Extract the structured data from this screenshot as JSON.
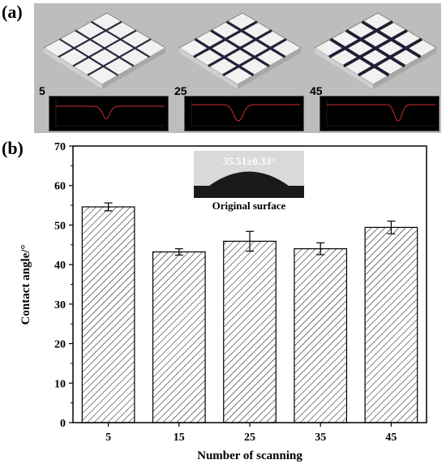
{
  "panel_a": {
    "label": "(a)",
    "tiles": [
      {
        "scan_label": "5"
      },
      {
        "scan_label": "25"
      },
      {
        "scan_label": "45"
      }
    ]
  },
  "panel_b": {
    "label": "(b)",
    "inset": {
      "angle_text": "35.51±0.33°",
      "caption": "Original surface"
    }
  },
  "chart_data": {
    "type": "bar",
    "categories": [
      "5",
      "15",
      "25",
      "35",
      "45"
    ],
    "values": [
      54.6,
      43.2,
      45.9,
      44.0,
      49.4
    ],
    "errors": [
      1.0,
      0.8,
      2.5,
      1.5,
      1.6
    ],
    "title": "",
    "xlabel": "Number of scanning",
    "ylabel": "Contact angle/°",
    "ylim": [
      0,
      70
    ],
    "yticks": [
      0,
      10,
      20,
      30,
      40,
      50,
      60,
      70
    ],
    "bar_fill": "hatched",
    "grid": false,
    "colors": {
      "bar_edge": "#000000",
      "hatch": "#000000",
      "background": "#ffffff"
    }
  }
}
